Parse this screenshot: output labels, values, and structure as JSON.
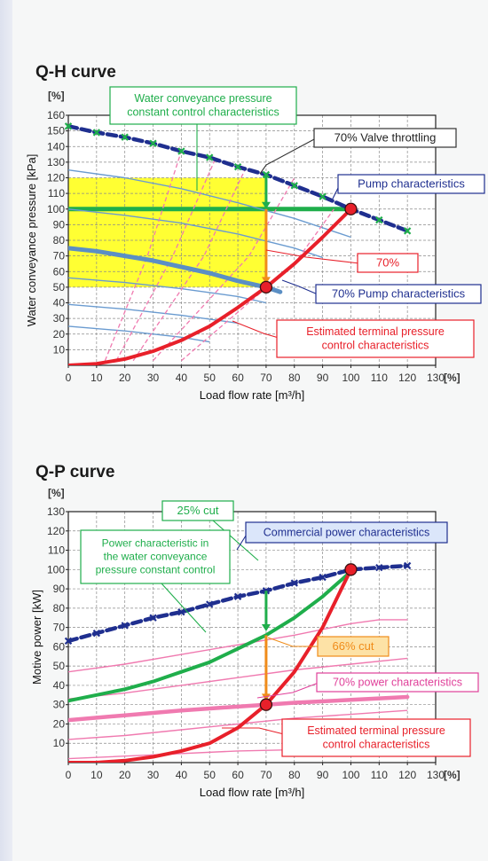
{
  "chart_data": [
    {
      "type": "line",
      "title": "Q-H curve",
      "xlabel": "Load flow rate [m³/h]",
      "x_unit_label": "[%]",
      "ylabel": "Water conveyance pressure [kPa]",
      "y_unit_label": "[%]",
      "xlim": [
        0,
        130
      ],
      "ylim": [
        0,
        160
      ],
      "x_ticks": [
        0,
        10,
        20,
        30,
        40,
        50,
        60,
        70,
        80,
        90,
        100,
        110,
        120,
        130
      ],
      "y_ticks": [
        10,
        20,
        30,
        40,
        50,
        60,
        70,
        80,
        90,
        100,
        110,
        120,
        130,
        140,
        150,
        160
      ],
      "x_tick_labels": [
        "0",
        "10",
        "20",
        "30",
        "40",
        "50",
        "60",
        "70",
        "80",
        "90",
        "100",
        "110",
        "120",
        "130"
      ],
      "y_tick_labels": [
        "10",
        "20",
        "30",
        "40",
        "50",
        "60",
        "70",
        "80",
        "90",
        "100",
        "110",
        "120",
        "130",
        "140",
        "150",
        "160"
      ],
      "grid": true,
      "highlight_band": {
        "x": [
          0,
          70
        ],
        "y": [
          50,
          120
        ],
        "color": "#ffff33"
      },
      "series": [
        {
          "name": "Pump characteristics",
          "color": "#1f2f8f",
          "style": "dashed-markers",
          "x": [
            0,
            10,
            20,
            30,
            40,
            50,
            60,
            70,
            80,
            90,
            100,
            110,
            120
          ],
          "y": [
            153,
            149,
            146,
            142,
            137,
            133,
            127,
            122,
            115,
            108,
            100,
            93,
            86
          ]
        },
        {
          "name": "Estimated terminal pressure control characteristics",
          "color": "#e8202a",
          "x": [
            0,
            10,
            20,
            30,
            40,
            50,
            60,
            70,
            80,
            90,
            100
          ],
          "y": [
            0,
            1,
            4,
            9,
            16,
            25,
            37,
            50,
            65,
            82,
            100
          ]
        },
        {
          "name": "70% Pump characteristics",
          "color": "#5b8fc4",
          "x": [
            0,
            10,
            20,
            30,
            40,
            50,
            60,
            70,
            75
          ],
          "y": [
            75,
            73,
            70,
            67,
            63,
            59,
            54,
            50,
            47
          ]
        },
        {
          "color": "#6a9bd0",
          "x": [
            0,
            20,
            40,
            60,
            80,
            100
          ],
          "y": [
            125,
            120,
            113,
            104,
            94,
            82
          ]
        },
        {
          "color": "#6a9bd0",
          "x": [
            0,
            20,
            40,
            60,
            80,
            90
          ],
          "y": [
            100,
            96,
            91,
            84,
            75,
            69
          ]
        },
        {
          "color": "#6a9bd0",
          "x": [
            0,
            20,
            40,
            60,
            70
          ],
          "y": [
            56,
            53,
            49,
            44,
            40
          ]
        },
        {
          "color": "#6a9bd0",
          "x": [
            0,
            20,
            40,
            60
          ],
          "y": [
            39,
            36,
            32,
            27
          ]
        },
        {
          "color": "#6a9bd0",
          "x": [
            0,
            20,
            40,
            50
          ],
          "y": [
            25,
            22,
            18,
            15
          ]
        },
        {
          "color": "#f07ab0",
          "style": "dashed",
          "x": [
            40,
            80,
            94
          ],
          "y": [
            3,
            65,
            100
          ]
        },
        {
          "color": "#f07ab0",
          "style": "dashed",
          "x": [
            30,
            64,
            80
          ],
          "y": [
            3,
            70,
            120
          ]
        },
        {
          "color": "#f07ab0",
          "style": "dashed",
          "x": [
            23,
            48,
            63
          ],
          "y": [
            3,
            70,
            127
          ]
        },
        {
          "color": "#f07ab0",
          "style": "dashed",
          "x": [
            17,
            37,
            52
          ],
          "y": [
            3,
            70,
            132
          ]
        },
        {
          "color": "#f07ab0",
          "style": "dashed",
          "x": [
            13,
            28,
            40
          ],
          "y": [
            3,
            70,
            137
          ]
        }
      ],
      "reference_lines": [
        {
          "y": 100,
          "x": [
            0,
            100
          ],
          "color": "#1fae4b",
          "label": "Water conveyance pressure constant control characteristics"
        }
      ],
      "markers": [
        {
          "x": 100,
          "y": 100,
          "color": "#e8202a"
        },
        {
          "x": 70,
          "y": 50,
          "color": "#e8202a"
        }
      ],
      "arrows": [
        {
          "x": 70,
          "from": 122,
          "to": 100,
          "color": "#1fae4b"
        },
        {
          "x": 70,
          "from": 100,
          "to": 52,
          "color": "#f08c1a"
        }
      ],
      "annotations": [
        {
          "text": "Water conveyance pressure constant control characteristics",
          "lines": [
            "Water conveyance pressure",
            "constant control characteristics"
          ],
          "color": "#1fae4b"
        },
        {
          "text": "70% Valve throttling",
          "lines": [
            "70% Valve throttling"
          ],
          "color": "#222222"
        },
        {
          "text": "Pump characteristics",
          "lines": [
            "Pump characteristics"
          ],
          "color": "#1f2f8f"
        },
        {
          "text": "70%",
          "lines": [
            "70%"
          ],
          "color": "#e8202a"
        },
        {
          "text": "70% Pump characteristics",
          "lines": [
            "70% Pump characteristics"
          ],
          "color": "#1f2f8f"
        },
        {
          "text": "Estimated terminal pressure control characteristics",
          "lines": [
            "Estimated terminal pressure",
            "control characteristics"
          ],
          "color": "#e8202a"
        }
      ]
    },
    {
      "type": "line",
      "title": "Q-P curve",
      "xlabel": "Load flow rate [m³/h]",
      "x_unit_label": "[%]",
      "ylabel": "Motive power [kW]",
      "y_unit_label": "[%]",
      "xlim": [
        0,
        130
      ],
      "ylim": [
        0,
        130
      ],
      "x_ticks": [
        0,
        10,
        20,
        30,
        40,
        50,
        60,
        70,
        80,
        90,
        100,
        110,
        120,
        130
      ],
      "y_ticks": [
        10,
        20,
        30,
        40,
        50,
        60,
        70,
        80,
        90,
        100,
        110,
        120,
        130
      ],
      "x_tick_labels": [
        "0",
        "10",
        "20",
        "30",
        "40",
        "50",
        "60",
        "70",
        "80",
        "90",
        "100",
        "110",
        "120",
        "130"
      ],
      "y_tick_labels": [
        "10",
        "20",
        "30",
        "40",
        "50",
        "60",
        "70",
        "80",
        "90",
        "100",
        "110",
        "120",
        "130"
      ],
      "grid": true,
      "series": [
        {
          "name": "Commercial power characteristics",
          "color": "#1f2f8f",
          "style": "dashed-markers",
          "x": [
            0,
            10,
            20,
            30,
            40,
            50,
            60,
            70,
            80,
            90,
            100,
            110,
            120
          ],
          "y": [
            63,
            67,
            71,
            75,
            78,
            82,
            86,
            89,
            93,
            96,
            100,
            101,
            102
          ]
        },
        {
          "name": "Power characteristic in the water conveyance pressure constant control",
          "color": "#1fae4b",
          "x": [
            0,
            10,
            20,
            30,
            40,
            50,
            60,
            70,
            80,
            90,
            100
          ],
          "y": [
            32,
            35,
            38,
            42,
            47,
            52,
            59,
            66,
            75,
            86,
            99
          ]
        },
        {
          "name": "Estimated terminal pressure control characteristics",
          "color": "#e8202a",
          "x": [
            0,
            10,
            20,
            30,
            40,
            50,
            60,
            70,
            80,
            90,
            100
          ],
          "y": [
            0,
            0,
            1,
            3,
            6,
            10,
            18,
            30,
            47,
            70,
            100
          ]
        },
        {
          "name": "70% power characteristics",
          "color": "#f07ab0",
          "x": [
            0,
            20,
            40,
            60,
            70,
            80,
            100,
            120
          ],
          "y": [
            22,
            24.5,
            27,
            29,
            30,
            31,
            32.5,
            34
          ]
        },
        {
          "color": "#f07ab0",
          "x": [
            0,
            20,
            40,
            60,
            80,
            100,
            110,
            120
          ],
          "y": [
            47,
            51,
            56,
            61,
            66,
            72,
            74,
            74
          ]
        },
        {
          "color": "#f07ab0",
          "x": [
            0,
            20,
            40,
            60,
            80,
            100,
            120
          ],
          "y": [
            33,
            36,
            40,
            44,
            48,
            51,
            54
          ]
        },
        {
          "color": "#f07ab0",
          "x": [
            0,
            20,
            40,
            60,
            80,
            100,
            120
          ],
          "y": [
            12,
            14,
            17,
            20,
            23,
            25,
            27
          ]
        },
        {
          "color": "#f07ab0",
          "x": [
            0,
            30,
            60,
            90,
            120
          ],
          "y": [
            2,
            4,
            6,
            7,
            9
          ]
        }
      ],
      "markers": [
        {
          "x": 100,
          "y": 100,
          "color": "#e8202a"
        },
        {
          "x": 70,
          "y": 30,
          "color": "#e8202a"
        }
      ],
      "arrows": [
        {
          "x": 70,
          "from": 89,
          "to": 68,
          "color": "#1fae4b"
        },
        {
          "x": 70,
          "from": 66,
          "to": 32,
          "color": "#f08c1a"
        }
      ],
      "annotations": [
        {
          "text": "25% cut",
          "lines": [
            "25% cut"
          ],
          "color": "#1fae4b"
        },
        {
          "text": "Commercial power characteristics",
          "lines": [
            "Commercial power characteristics"
          ],
          "color": "#1f2f8f"
        },
        {
          "text": "Power characteristic in the water conveyance pressure constant control",
          "lines": [
            "Power characteristic in",
            "the water conveyance",
            "pressure constant control"
          ],
          "color": "#1fae4b"
        },
        {
          "text": "66% cut",
          "lines": [
            "66% cut"
          ],
          "color": "#f08c1a"
        },
        {
          "text": "70% power characteristics",
          "lines": [
            "70% power characteristics"
          ],
          "color": "#e0409a"
        },
        {
          "text": "Estimated terminal pressure control characteristics",
          "lines": [
            "Estimated terminal pressure",
            "control characteristics"
          ],
          "color": "#e8202a"
        }
      ]
    }
  ]
}
